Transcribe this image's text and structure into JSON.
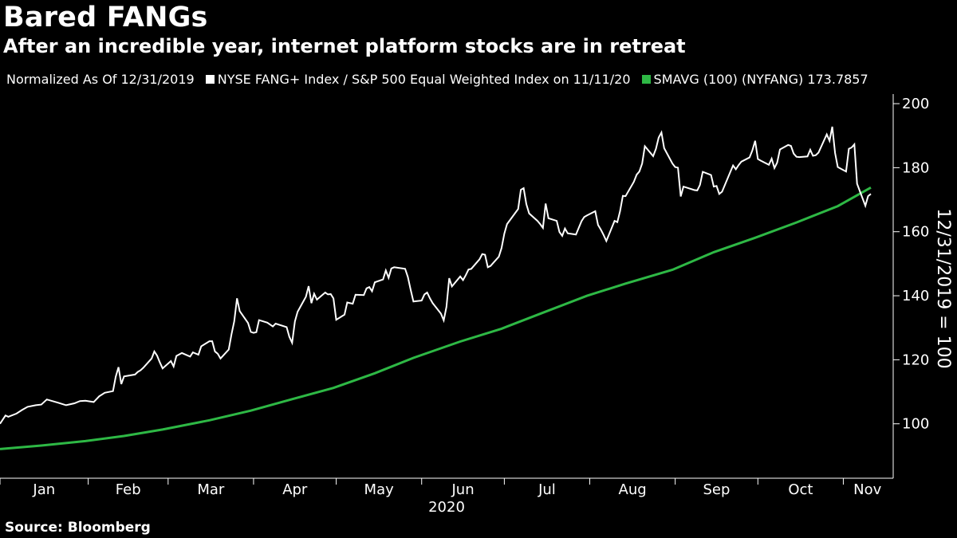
{
  "header": {
    "title": "Bared FANGs",
    "subtitle": "After an incredible year, internet platform stocks are in retreat"
  },
  "legend": {
    "normalized": "Normalized As Of 12/31/2019",
    "items": [
      {
        "label": "NYSE FANG+ Index / S&P 500 Equal Weighted Index on 11/11/20",
        "color": "#ffffff"
      },
      {
        "label": "SMAVG (100) (NYFANG) 173.7857",
        "color": "#2eb845"
      }
    ]
  },
  "footer": {
    "source": "Source: Bloomberg"
  },
  "colors": {
    "background": "#000000",
    "index_line": "#ffffff",
    "sma_line": "#2eb845",
    "axis": "#ffffff"
  },
  "chart_data": {
    "type": "line",
    "title": "Bared FANGs",
    "subtitle": "After an incredible year, internet platform stocks are in retreat",
    "xlabel": "2020",
    "ylabel": "12/31/2019 = 100",
    "x_ticks": [
      "Jan",
      "Feb",
      "Mar",
      "Apr",
      "May",
      "Jun",
      "Jul",
      "Aug",
      "Sep",
      "Oct",
      "Nov"
    ],
    "y_ticks": [
      100,
      120,
      140,
      160,
      180,
      200
    ],
    "ylim": [
      83,
      203
    ],
    "xlim": [
      "2019-12-31",
      "2020-11-11"
    ],
    "grid": false,
    "legend_position": "top",
    "series": [
      {
        "name": "NYSE FANG+ Index / S&P 500 Equal Weighted Index on 11/11/20",
        "points": [
          [
            "2019-12-31",
            100.0
          ],
          [
            "2020-01-02",
            102.6
          ],
          [
            "2020-01-03",
            102.2
          ],
          [
            "2020-01-06",
            103.2
          ],
          [
            "2020-01-08",
            104.3
          ],
          [
            "2020-01-10",
            105.3
          ],
          [
            "2020-01-13",
            105.8
          ],
          [
            "2020-01-15",
            106.0
          ],
          [
            "2020-01-17",
            107.6
          ],
          [
            "2020-01-21",
            106.6
          ],
          [
            "2020-01-24",
            105.8
          ],
          [
            "2020-01-27",
            106.4
          ],
          [
            "2020-01-29",
            107.1
          ],
          [
            "2020-01-31",
            107.2
          ],
          [
            "2020-02-03",
            106.8
          ],
          [
            "2020-02-05",
            108.6
          ],
          [
            "2020-02-07",
            109.7
          ],
          [
            "2020-02-10",
            110.2
          ],
          [
            "2020-02-11",
            114.7
          ],
          [
            "2020-02-12",
            117.7
          ],
          [
            "2020-02-13",
            112.4
          ],
          [
            "2020-02-14",
            114.8
          ],
          [
            "2020-02-18",
            115.4
          ],
          [
            "2020-02-19",
            116.2
          ],
          [
            "2020-02-20",
            116.7
          ],
          [
            "2020-02-21",
            117.5
          ],
          [
            "2020-02-24",
            120.4
          ],
          [
            "2020-02-25",
            122.6
          ],
          [
            "2020-02-26",
            121.3
          ],
          [
            "2020-02-27",
            119.2
          ],
          [
            "2020-02-28",
            117.3
          ],
          [
            "2020-03-02",
            119.6
          ],
          [
            "2020-03-03",
            117.9
          ],
          [
            "2020-03-04",
            121.2
          ],
          [
            "2020-03-06",
            122.1
          ],
          [
            "2020-03-09",
            121.0
          ],
          [
            "2020-03-10",
            122.3
          ],
          [
            "2020-03-12",
            121.6
          ],
          [
            "2020-03-13",
            124.2
          ],
          [
            "2020-03-16",
            125.8
          ],
          [
            "2020-03-17",
            125.8
          ],
          [
            "2020-03-18",
            122.6
          ],
          [
            "2020-03-19",
            121.9
          ],
          [
            "2020-03-20",
            120.4
          ],
          [
            "2020-03-23",
            123.2
          ],
          [
            "2020-03-24",
            128.0
          ],
          [
            "2020-03-25",
            132.0
          ],
          [
            "2020-03-26",
            139.2
          ],
          [
            "2020-03-27",
            135.2
          ],
          [
            "2020-03-30",
            131.5
          ],
          [
            "2020-03-31",
            128.7
          ],
          [
            "2020-04-01",
            128.4
          ],
          [
            "2020-04-02",
            128.6
          ],
          [
            "2020-04-03",
            132.4
          ],
          [
            "2020-04-06",
            131.6
          ],
          [
            "2020-04-08",
            130.4
          ],
          [
            "2020-04-09",
            131.3
          ],
          [
            "2020-04-13",
            130.2
          ],
          [
            "2020-04-14",
            127.2
          ],
          [
            "2020-04-15",
            125.3
          ],
          [
            "2020-04-16",
            132.0
          ],
          [
            "2020-04-17",
            135.0
          ],
          [
            "2020-04-20",
            139.7
          ],
          [
            "2020-04-21",
            143.0
          ],
          [
            "2020-04-22",
            137.7
          ],
          [
            "2020-04-23",
            140.6
          ],
          [
            "2020-04-24",
            138.8
          ],
          [
            "2020-04-27",
            141.0
          ],
          [
            "2020-04-28",
            140.4
          ],
          [
            "2020-04-29",
            140.5
          ],
          [
            "2020-04-30",
            139.2
          ],
          [
            "2020-05-01",
            132.5
          ],
          [
            "2020-05-04",
            134.1
          ],
          [
            "2020-05-05",
            137.9
          ],
          [
            "2020-05-07",
            137.5
          ],
          [
            "2020-05-08",
            140.3
          ],
          [
            "2020-05-11",
            140.2
          ],
          [
            "2020-05-12",
            142.3
          ],
          [
            "2020-05-13",
            142.7
          ],
          [
            "2020-05-14",
            141.4
          ],
          [
            "2020-05-15",
            144.2
          ],
          [
            "2020-05-18",
            145.1
          ],
          [
            "2020-05-19",
            147.9
          ],
          [
            "2020-05-20",
            145.6
          ],
          [
            "2020-05-21",
            148.5
          ],
          [
            "2020-05-22",
            148.9
          ],
          [
            "2020-05-26",
            148.4
          ],
          [
            "2020-05-27",
            145.9
          ],
          [
            "2020-05-28",
            141.9
          ],
          [
            "2020-05-29",
            138.2
          ],
          [
            "2020-06-01",
            138.5
          ],
          [
            "2020-06-02",
            140.4
          ],
          [
            "2020-06-03",
            141.0
          ],
          [
            "2020-06-04",
            139.2
          ],
          [
            "2020-06-05",
            137.7
          ],
          [
            "2020-06-08",
            134.4
          ],
          [
            "2020-06-09",
            132.3
          ],
          [
            "2020-06-10",
            136.5
          ],
          [
            "2020-06-11",
            145.5
          ],
          [
            "2020-06-12",
            142.9
          ],
          [
            "2020-06-15",
            146.0
          ],
          [
            "2020-06-16",
            144.9
          ],
          [
            "2020-06-17",
            146.4
          ],
          [
            "2020-06-18",
            148.2
          ],
          [
            "2020-06-19",
            148.4
          ],
          [
            "2020-06-22",
            151.4
          ],
          [
            "2020-06-23",
            153.0
          ],
          [
            "2020-06-24",
            152.8
          ],
          [
            "2020-06-25",
            148.9
          ],
          [
            "2020-06-26",
            149.3
          ],
          [
            "2020-06-29",
            152.2
          ],
          [
            "2020-06-30",
            154.9
          ],
          [
            "2020-07-01",
            159.4
          ],
          [
            "2020-07-02",
            162.4
          ],
          [
            "2020-07-06",
            167.1
          ],
          [
            "2020-07-07",
            173.1
          ],
          [
            "2020-07-08",
            173.6
          ],
          [
            "2020-07-09",
            168.6
          ],
          [
            "2020-07-10",
            165.7
          ],
          [
            "2020-07-13",
            163.4
          ],
          [
            "2020-07-14",
            162.4
          ],
          [
            "2020-07-15",
            161.2
          ],
          [
            "2020-07-16",
            168.8
          ],
          [
            "2020-07-17",
            164.2
          ],
          [
            "2020-07-20",
            163.4
          ],
          [
            "2020-07-21",
            159.9
          ],
          [
            "2020-07-22",
            158.7
          ],
          [
            "2020-07-23",
            161.0
          ],
          [
            "2020-07-24",
            159.5
          ],
          [
            "2020-07-27",
            159.1
          ],
          [
            "2020-07-28",
            161.2
          ],
          [
            "2020-07-29",
            163.3
          ],
          [
            "2020-07-30",
            164.6
          ],
          [
            "2020-07-31",
            165.1
          ],
          [
            "2020-08-03",
            166.4
          ],
          [
            "2020-08-04",
            162.1
          ],
          [
            "2020-08-05",
            160.7
          ],
          [
            "2020-08-06",
            159.0
          ],
          [
            "2020-08-07",
            157.1
          ],
          [
            "2020-08-10",
            163.4
          ],
          [
            "2020-08-11",
            163.0
          ],
          [
            "2020-08-12",
            166.4
          ],
          [
            "2020-08-13",
            171.2
          ],
          [
            "2020-08-14",
            171.1
          ],
          [
            "2020-08-17",
            175.6
          ],
          [
            "2020-08-18",
            177.8
          ],
          [
            "2020-08-19",
            178.8
          ],
          [
            "2020-08-20",
            181.3
          ],
          [
            "2020-08-21",
            186.7
          ],
          [
            "2020-08-24",
            183.6
          ],
          [
            "2020-08-25",
            185.9
          ],
          [
            "2020-08-26",
            189.4
          ],
          [
            "2020-08-27",
            191.0
          ],
          [
            "2020-08-28",
            186.1
          ],
          [
            "2020-08-31",
            181.3
          ],
          [
            "2020-09-01",
            180.2
          ],
          [
            "2020-09-02",
            180.0
          ],
          [
            "2020-09-03",
            171.0
          ],
          [
            "2020-09-04",
            174.1
          ],
          [
            "2020-09-08",
            173.0
          ],
          [
            "2020-09-09",
            172.9
          ],
          [
            "2020-09-10",
            174.6
          ],
          [
            "2020-09-11",
            178.7
          ],
          [
            "2020-09-14",
            177.7
          ],
          [
            "2020-09-15",
            174.1
          ],
          [
            "2020-09-16",
            174.3
          ],
          [
            "2020-09-17",
            171.8
          ],
          [
            "2020-09-18",
            172.5
          ],
          [
            "2020-09-21",
            178.7
          ],
          [
            "2020-09-22",
            180.7
          ],
          [
            "2020-09-23",
            179.5
          ],
          [
            "2020-09-24",
            180.8
          ],
          [
            "2020-09-25",
            181.9
          ],
          [
            "2020-09-28",
            183.2
          ],
          [
            "2020-09-29",
            185.4
          ],
          [
            "2020-09-30",
            188.4
          ],
          [
            "2020-10-01",
            182.7
          ],
          [
            "2020-10-02",
            182.2
          ],
          [
            "2020-10-05",
            180.9
          ],
          [
            "2020-10-06",
            182.8
          ],
          [
            "2020-10-07",
            179.9
          ],
          [
            "2020-10-08",
            181.6
          ],
          [
            "2020-10-09",
            185.7
          ],
          [
            "2020-10-12",
            187.1
          ],
          [
            "2020-10-13",
            186.8
          ],
          [
            "2020-10-14",
            184.4
          ],
          [
            "2020-10-15",
            183.4
          ],
          [
            "2020-10-16",
            183.3
          ],
          [
            "2020-10-19",
            183.5
          ],
          [
            "2020-10-20",
            185.6
          ],
          [
            "2020-10-21",
            183.7
          ],
          [
            "2020-10-22",
            183.9
          ],
          [
            "2020-10-23",
            184.7
          ],
          [
            "2020-10-26",
            190.4
          ],
          [
            "2020-10-27",
            188.4
          ],
          [
            "2020-10-28",
            192.8
          ],
          [
            "2020-10-29",
            184.6
          ],
          [
            "2020-10-30",
            180.2
          ],
          [
            "2020-11-02",
            178.8
          ],
          [
            "2020-11-03",
            185.9
          ],
          [
            "2020-11-04",
            186.3
          ],
          [
            "2020-11-05",
            187.3
          ],
          [
            "2020-11-06",
            175.0
          ],
          [
            "2020-11-09",
            168.1
          ],
          [
            "2020-11-10",
            171.1
          ],
          [
            "2020-11-11",
            171.8
          ]
        ]
      },
      {
        "name": "SMAVG (100) (NYFANG) 173.7857",
        "points": [
          [
            "2019-12-31",
            92.1
          ],
          [
            "2020-01-15",
            93.2
          ],
          [
            "2020-01-31",
            94.6
          ],
          [
            "2020-02-14",
            96.2
          ],
          [
            "2020-02-28",
            98.2
          ],
          [
            "2020-03-16",
            101.1
          ],
          [
            "2020-03-31",
            104.1
          ],
          [
            "2020-04-15",
            107.7
          ],
          [
            "2020-04-30",
            111.2
          ],
          [
            "2020-05-15",
            115.8
          ],
          [
            "2020-05-29",
            120.6
          ],
          [
            "2020-06-15",
            125.7
          ],
          [
            "2020-06-30",
            129.7
          ],
          [
            "2020-07-15",
            134.7
          ],
          [
            "2020-07-31",
            140.0
          ],
          [
            "2020-08-14",
            143.8
          ],
          [
            "2020-08-31",
            148.1
          ],
          [
            "2020-09-15",
            153.6
          ],
          [
            "2020-09-30",
            158.1
          ],
          [
            "2020-10-15",
            162.9
          ],
          [
            "2020-10-30",
            168.0
          ],
          [
            "2020-11-11",
            173.8
          ]
        ]
      }
    ]
  }
}
